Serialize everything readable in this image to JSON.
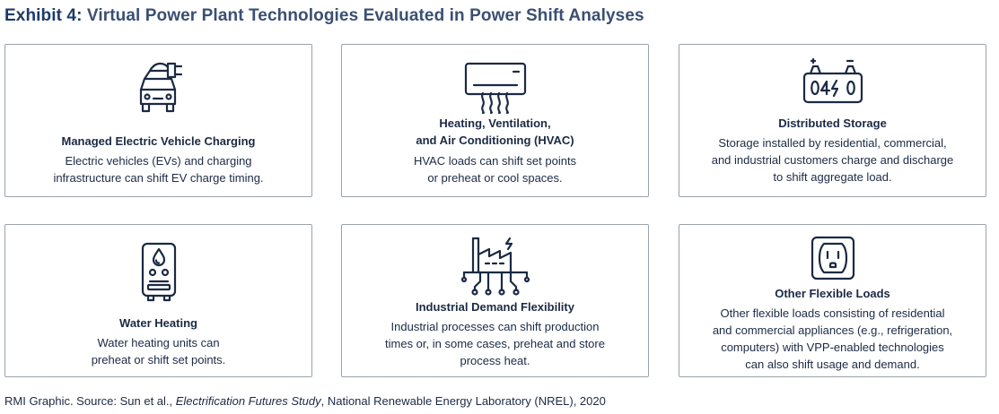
{
  "title": {
    "lead": "Exhibit 4:",
    "rest": "Virtual Power Plant Technologies Evaluated in Power Shift Analyses"
  },
  "cards": [
    {
      "heading": [
        "Managed Electric Vehicle Charging"
      ],
      "desc": [
        "Electric vehicles (EVs) and charging",
        "infrastructure can shift EV charge timing."
      ],
      "icon": "ev-charging-icon"
    },
    {
      "heading": [
        "Heating, Ventilation,",
        "and Air Conditioning (HVAC)"
      ],
      "desc": [
        "HVAC loads can shift set points",
        "or preheat or cool spaces."
      ],
      "icon": "hvac-icon"
    },
    {
      "heading": [
        "Distributed Storage"
      ],
      "desc": [
        "Storage installed by residential, commercial,",
        "and industrial customers charge and discharge",
        "to shift aggregate load."
      ],
      "icon": "battery-icon"
    },
    {
      "heading": [
        "Water Heating"
      ],
      "desc": [
        "Water heating units can",
        "preheat or shift set points."
      ],
      "icon": "water-heater-icon"
    },
    {
      "heading": [
        "Industrial Demand Flexibility"
      ],
      "desc": [
        "Industrial processes can shift production",
        "times or, in some cases, preheat and store",
        "process heat."
      ],
      "icon": "factory-icon"
    },
    {
      "heading": [
        "Other Flexible Loads"
      ],
      "desc": [
        "Other flexible loads consisting of residential",
        "and commercial appliances (e.g., refrigeration,",
        "computers) with VPP-enabled technologies",
        "can also shift usage and demand."
      ],
      "icon": "outlet-icon"
    }
  ],
  "footer": {
    "prefix": "RMI Graphic. Source: Sun et al., ",
    "italic": "Electrification Futures Study",
    "suffix": ", National Renewable Energy Laboratory (NREL), 2020"
  }
}
